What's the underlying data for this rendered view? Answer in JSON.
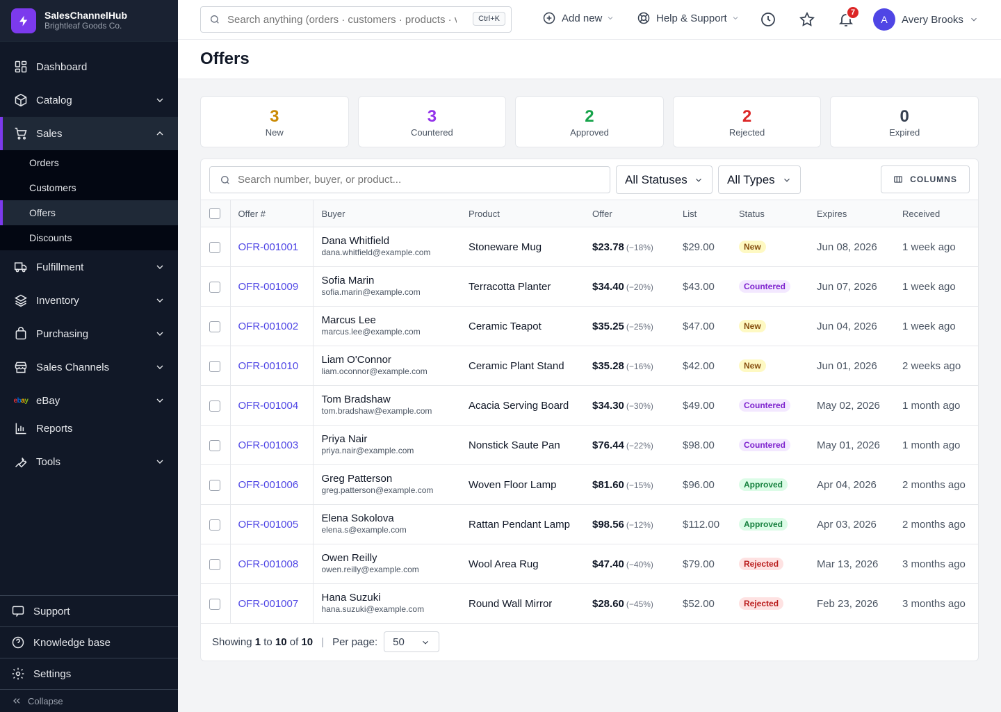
{
  "brand": {
    "name": "SalesChannelHub",
    "company": "Brightleaf Goods Co."
  },
  "sidebar": {
    "items": [
      {
        "label": "Dashboard",
        "icon": "dashboard-icon"
      },
      {
        "label": "Catalog",
        "icon": "box-icon"
      },
      {
        "label": "Sales",
        "icon": "cart-icon"
      },
      {
        "label": "Fulfillment",
        "icon": "truck-icon"
      },
      {
        "label": "Inventory",
        "icon": "layers-icon"
      },
      {
        "label": "Purchasing",
        "icon": "bag-icon"
      },
      {
        "label": "Sales Channels",
        "icon": "store-icon"
      },
      {
        "label": "eBay",
        "icon": "ebay-logo"
      },
      {
        "label": "Reports",
        "icon": "chart-icon"
      },
      {
        "label": "Tools",
        "icon": "wrench-icon"
      }
    ],
    "sales_sub": [
      "Orders",
      "Customers",
      "Offers",
      "Discounts"
    ],
    "bottom": [
      "Support",
      "Knowledge base",
      "Settings"
    ],
    "collapse": "Collapse"
  },
  "topbar": {
    "search_placeholder": "Search anything (orders · customers · products · vendors)",
    "shortcut": "Ctrl+K",
    "add_new": "Add new",
    "help": "Help & Support",
    "notifications": "7",
    "user_initial": "A",
    "user_name": "Avery Brooks"
  },
  "page": {
    "title": "Offers"
  },
  "stats": [
    {
      "value": "3",
      "label": "New",
      "color": "#ca8a04"
    },
    {
      "value": "3",
      "label": "Countered",
      "color": "#9333ea"
    },
    {
      "value": "2",
      "label": "Approved",
      "color": "#16a34a"
    },
    {
      "value": "2",
      "label": "Rejected",
      "color": "#dc2626"
    },
    {
      "value": "0",
      "label": "Expired",
      "color": "#374151"
    }
  ],
  "filters": {
    "search_placeholder": "Search number, buyer, or product...",
    "status": "All Statuses",
    "type": "All Types",
    "columns": "COLUMNS"
  },
  "table": {
    "headers": [
      "Offer #",
      "Buyer",
      "Product",
      "Offer",
      "List",
      "Status",
      "Expires",
      "Received"
    ],
    "rows": [
      {
        "id": "OFR-001001",
        "name": "Dana Whitfield",
        "email": "dana.whitfield@example.com",
        "product": "Stoneware Mug",
        "offer": "$23.78",
        "pct": "(−18%)",
        "list": "$29.00",
        "status": "New",
        "expires": "Jun 08, 2026",
        "received": "1 week ago"
      },
      {
        "id": "OFR-001009",
        "name": "Sofia Marin",
        "email": "sofia.marin@example.com",
        "product": "Terracotta Planter",
        "offer": "$34.40",
        "pct": "(−20%)",
        "list": "$43.00",
        "status": "Countered",
        "expires": "Jun 07, 2026",
        "received": "1 week ago"
      },
      {
        "id": "OFR-001002",
        "name": "Marcus Lee",
        "email": "marcus.lee@example.com",
        "product": "Ceramic Teapot",
        "offer": "$35.25",
        "pct": "(−25%)",
        "list": "$47.00",
        "status": "New",
        "expires": "Jun 04, 2026",
        "received": "1 week ago"
      },
      {
        "id": "OFR-001010",
        "name": "Liam O'Connor",
        "email": "liam.oconnor@example.com",
        "product": "Ceramic Plant Stand",
        "offer": "$35.28",
        "pct": "(−16%)",
        "list": "$42.00",
        "status": "New",
        "expires": "Jun 01, 2026",
        "received": "2 weeks ago"
      },
      {
        "id": "OFR-001004",
        "name": "Tom Bradshaw",
        "email": "tom.bradshaw@example.com",
        "product": "Acacia Serving Board",
        "offer": "$34.30",
        "pct": "(−30%)",
        "list": "$49.00",
        "status": "Countered",
        "expires": "May 02, 2026",
        "received": "1 month ago"
      },
      {
        "id": "OFR-001003",
        "name": "Priya Nair",
        "email": "priya.nair@example.com",
        "product": "Nonstick Saute Pan",
        "offer": "$76.44",
        "pct": "(−22%)",
        "list": "$98.00",
        "status": "Countered",
        "expires": "May 01, 2026",
        "received": "1 month ago"
      },
      {
        "id": "OFR-001006",
        "name": "Greg Patterson",
        "email": "greg.patterson@example.com",
        "product": "Woven Floor Lamp",
        "offer": "$81.60",
        "pct": "(−15%)",
        "list": "$96.00",
        "status": "Approved",
        "expires": "Apr 04, 2026",
        "received": "2 months ago"
      },
      {
        "id": "OFR-001005",
        "name": "Elena Sokolova",
        "email": "elena.s@example.com",
        "product": "Rattan Pendant Lamp",
        "offer": "$98.56",
        "pct": "(−12%)",
        "list": "$112.00",
        "status": "Approved",
        "expires": "Apr 03, 2026",
        "received": "2 months ago"
      },
      {
        "id": "OFR-001008",
        "name": "Owen Reilly",
        "email": "owen.reilly@example.com",
        "product": "Wool Area Rug",
        "offer": "$47.40",
        "pct": "(−40%)",
        "list": "$79.00",
        "status": "Rejected",
        "expires": "Mar 13, 2026",
        "received": "3 months ago"
      },
      {
        "id": "OFR-001007",
        "name": "Hana Suzuki",
        "email": "hana.suzuki@example.com",
        "product": "Round Wall Mirror",
        "offer": "$28.60",
        "pct": "(−45%)",
        "list": "$52.00",
        "status": "Rejected",
        "expires": "Feb 23, 2026",
        "received": "3 months ago"
      }
    ]
  },
  "status_colors": {
    "New": {
      "bg": "#fef9c3",
      "fg": "#854d0e"
    },
    "Countered": {
      "bg": "#f3e8ff",
      "fg": "#7e22ce"
    },
    "Approved": {
      "bg": "#dcfce7",
      "fg": "#15803d"
    },
    "Rejected": {
      "bg": "#fee2e2",
      "fg": "#b91c1c"
    }
  },
  "footer": {
    "showing": "Showing",
    "from": "1",
    "to_word": "to",
    "to": "10",
    "of_word": "of",
    "total": "10",
    "per_page_label": "Per page:",
    "per_page": "50"
  }
}
